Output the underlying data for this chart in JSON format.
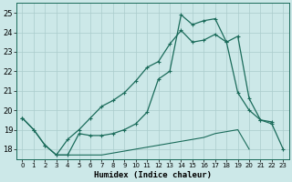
{
  "background_color": "#cce8e8",
  "grid_color": "#aacccc",
  "line_color": "#1a6b5a",
  "xlabel": "Humidex (Indice chaleur)",
  "ylim": [
    17.5,
    25.5
  ],
  "xlim": [
    -0.5,
    23.5
  ],
  "yticks": [
    18,
    19,
    20,
    21,
    22,
    23,
    24,
    25
  ],
  "xticks": [
    0,
    1,
    2,
    3,
    4,
    5,
    6,
    7,
    8,
    9,
    10,
    11,
    12,
    13,
    14,
    15,
    16,
    17,
    18,
    19,
    20,
    21,
    22,
    23
  ],
  "series1_x": [
    0,
    1,
    2,
    3,
    4,
    5,
    6,
    7,
    8,
    9,
    10,
    11,
    12,
    13,
    14,
    15,
    16,
    17,
    18,
    19,
    20,
    21,
    22,
    23
  ],
  "series1_y": [
    19.6,
    19.0,
    18.2,
    17.7,
    17.7,
    18.8,
    18.7,
    18.7,
    18.8,
    19.0,
    19.3,
    19.9,
    21.6,
    22.0,
    24.9,
    24.4,
    24.6,
    24.7,
    23.5,
    23.8,
    20.6,
    19.5,
    19.3,
    18.0
  ],
  "series2_x": [
    0,
    1,
    2,
    3,
    4,
    5,
    6,
    7,
    8,
    9,
    10,
    11,
    12,
    13,
    14,
    15,
    16,
    17,
    18,
    19,
    20,
    21,
    22
  ],
  "series2_y": [
    19.6,
    19.0,
    18.2,
    17.7,
    18.5,
    19.0,
    19.6,
    20.2,
    20.5,
    20.9,
    21.5,
    22.2,
    22.5,
    23.4,
    24.1,
    23.5,
    23.6,
    23.9,
    23.5,
    20.9,
    20.0,
    19.5,
    19.4
  ],
  "series3_x": [
    3,
    4,
    5,
    6,
    7,
    8,
    9,
    10,
    11,
    12,
    13,
    14,
    15,
    16,
    17,
    18,
    19,
    20
  ],
  "series3_y": [
    17.7,
    17.7,
    17.7,
    17.7,
    17.7,
    17.8,
    17.9,
    18.0,
    18.1,
    18.2,
    18.3,
    18.4,
    18.5,
    18.6,
    18.8,
    18.9,
    19.0,
    18.0
  ]
}
